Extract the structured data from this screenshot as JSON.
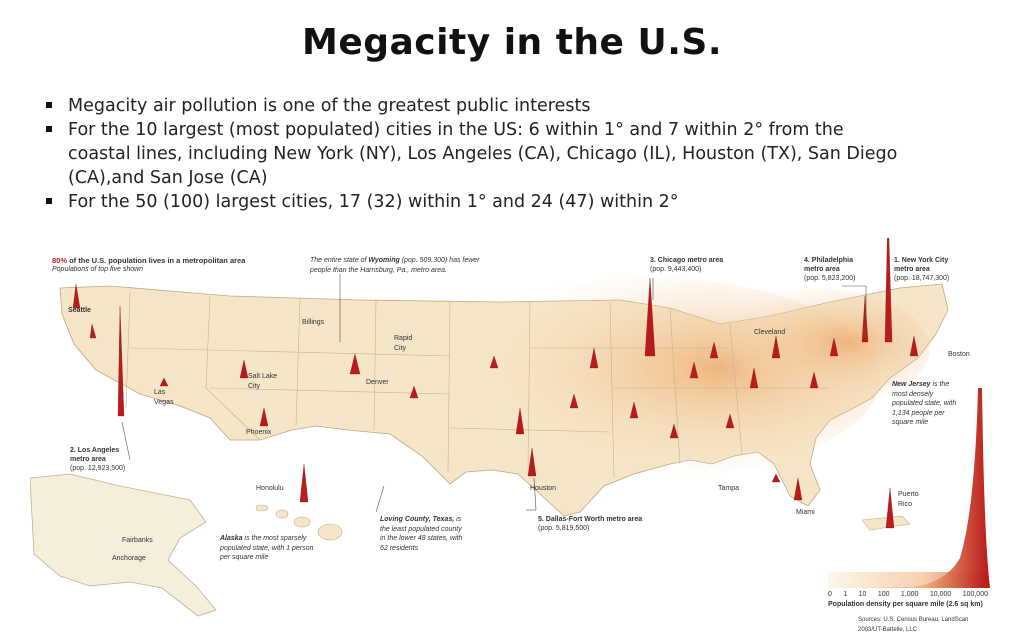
{
  "slide": {
    "title": "Megacity in the U.S.",
    "bullets": [
      {
        "text": "Megacity air pollution is one of the greatest public interests"
      },
      {
        "text": "For the 10 largest (most populated) cities in the US: 6 within 1° and 7 within 2° from the coastal lines, including New York (NY), Los Angeles (CA), Chicago (IL), Houston (TX), San Diego (CA),and San Jose (CA)"
      },
      {
        "text": "For the 50 (100) largest cities, 17 (32) within 1° and 24 (47) within 2°"
      }
    ]
  },
  "map": {
    "headline_pct": "80%",
    "headline_rest": " of the U.S. population lives in a metropolitan area",
    "headline_sub": "Populations of top five shown",
    "wyoming_note_a": "The entire state of ",
    "wyoming_bold": "Wyoming",
    "wyoming_note_b": " (pop. 509,300) has fewer people than the Harrisburg, Pa., metro area.",
    "metros": {
      "chicago": {
        "name": "3. Chicago metro area",
        "pop": "(pop. 9,443,400)"
      },
      "philadelphia": {
        "name1": "4. Philadelphia",
        "name2": "metro area",
        "pop": "(pop. 5,823,200)"
      },
      "newyork": {
        "name1": "1. New York City",
        "name2": "metro area",
        "pop": "(pop. 18,747,300)"
      },
      "losangeles": {
        "name1": "2. Los Angeles",
        "name2": "metro area",
        "pop": "(pop. 12,923,500)"
      },
      "dallas": {
        "name": "5. Dallas-Fort Worth metro area",
        "pop": "(pop. 5,819,500)"
      }
    },
    "cities": {
      "seattle": "Seattle",
      "billings": "Billings",
      "rapid_city_1": "Rapid",
      "rapid_city_2": "City",
      "salt_lake_1": "Salt Lake",
      "salt_lake_2": "City",
      "denver": "Denver",
      "las_vegas_1": "Las",
      "las_vegas_2": "Vegas",
      "phoenix": "Phoenix",
      "cleveland": "Cleveland",
      "boston": "Boston",
      "houston": "Houston",
      "tampa": "Tampa",
      "miami": "Miami",
      "honolulu": "Honolulu",
      "fairbanks": "Fairbanks",
      "anchorage": "Anchorage",
      "puerto_rico_1": "Puerto",
      "puerto_rico_2": "Rico"
    },
    "new_jersey": {
      "bold": "New Jersey",
      "rest": "is the most densely populated state, with 1,134 people per square mile"
    },
    "loving": {
      "bold": "Loving County, Texas,",
      "rest": "is the least populated county in the lower 48 states, with 62 residents"
    },
    "alaska": {
      "bold": "Alaska",
      "rest": "is the most sparsely populated state, with 1 person per square mile"
    },
    "legend": {
      "ticks": [
        "0",
        "1",
        "10",
        "100",
        "1,000",
        "10,000",
        "100,000"
      ],
      "caption": "Population density per square mile (2.6 sq km)"
    },
    "sources": "Sources: U.S. Census Bureau; LandScan 2003/UT-Battelle, LLC",
    "colors": {
      "land": "#f6e6c8",
      "density_low": "#f0b070",
      "density_high": "#b81818"
    }
  }
}
